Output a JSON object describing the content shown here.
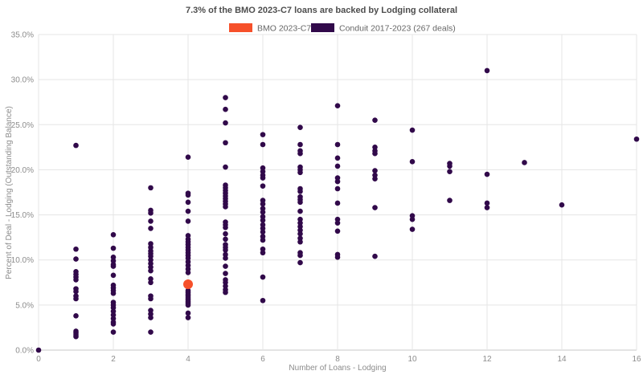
{
  "colors": {
    "background": "#ffffff",
    "grid": "#e5e5e5",
    "axis_line": "#c9c9c9",
    "title_text": "#4d4d4d",
    "legend_text": "#666666",
    "tick_text": "#8c8c8c"
  },
  "chart_data": {
    "type": "scatter",
    "title": "7.3% of the BMO 2023-C7 loans are backed by Lodging collateral",
    "xlabel": "Number of Loans - Lodging",
    "ylabel": "Percent of Deal - Lodging (Outstanding Balance)",
    "xlim": [
      0,
      16
    ],
    "ylim": [
      0,
      35
    ],
    "grid": true,
    "legend_position": "top",
    "x_ticks": [
      0,
      2,
      4,
      6,
      8,
      10,
      12,
      14,
      16
    ],
    "y_tick_values": [
      0,
      5,
      10,
      15,
      20,
      25,
      30,
      35
    ],
    "y_ticks": [
      "0.0%",
      "5.0%",
      "10.0%",
      "15.0%",
      "20.0%",
      "25.0%",
      "30.0%",
      "35.0%"
    ],
    "series": [
      {
        "name": "BMO 2023-C7",
        "color": "#f6502a",
        "radius": 6,
        "points": [
          [
            4,
            7.3
          ]
        ]
      },
      {
        "name": "Conduit 2017-2023 (267 deals)",
        "color": "#31094a",
        "radius": 3.3,
        "points": [
          [
            0,
            0.0
          ],
          [
            1,
            22.7
          ],
          [
            1,
            11.2
          ],
          [
            1,
            10.1
          ],
          [
            1,
            8.7
          ],
          [
            1,
            8.4
          ],
          [
            1,
            8.1
          ],
          [
            1,
            7.8
          ],
          [
            1,
            6.8
          ],
          [
            1,
            6.5
          ],
          [
            1,
            6.0
          ],
          [
            1,
            5.7
          ],
          [
            1,
            3.8
          ],
          [
            1,
            2.1
          ],
          [
            1,
            1.9
          ],
          [
            1,
            1.7
          ],
          [
            1,
            1.5
          ],
          [
            2,
            12.8
          ],
          [
            2,
            11.3
          ],
          [
            2,
            10.3
          ],
          [
            2,
            9.9
          ],
          [
            2,
            9.5
          ],
          [
            2,
            9.3
          ],
          [
            2,
            8.3
          ],
          [
            2,
            7.2
          ],
          [
            2,
            6.9
          ],
          [
            2,
            6.6
          ],
          [
            2,
            6.3
          ],
          [
            2,
            5.3
          ],
          [
            2,
            5.0
          ],
          [
            2,
            4.7
          ],
          [
            2,
            4.3
          ],
          [
            2,
            3.9
          ],
          [
            2,
            3.5
          ],
          [
            2,
            3.1
          ],
          [
            2,
            2.9
          ],
          [
            2,
            2.0
          ],
          [
            3,
            18.0
          ],
          [
            3,
            15.5
          ],
          [
            3,
            15.2
          ],
          [
            3,
            14.3
          ],
          [
            3,
            13.5
          ],
          [
            3,
            11.8
          ],
          [
            3,
            11.4
          ],
          [
            3,
            11.0
          ],
          [
            3,
            10.7
          ],
          [
            3,
            10.4
          ],
          [
            3,
            10.0
          ],
          [
            3,
            9.6
          ],
          [
            3,
            9.2
          ],
          [
            3,
            8.8
          ],
          [
            3,
            7.9
          ],
          [
            3,
            7.5
          ],
          [
            3,
            6.0
          ],
          [
            3,
            5.7
          ],
          [
            3,
            4.4
          ],
          [
            3,
            4.0
          ],
          [
            3,
            3.6
          ],
          [
            3,
            2.0
          ],
          [
            4,
            21.4
          ],
          [
            4,
            17.4
          ],
          [
            4,
            17.2
          ],
          [
            4,
            16.4
          ],
          [
            4,
            15.4
          ],
          [
            4,
            14.3
          ],
          [
            4,
            12.7
          ],
          [
            4,
            12.3
          ],
          [
            4,
            12.0
          ],
          [
            4,
            11.7
          ],
          [
            4,
            11.4
          ],
          [
            4,
            11.1
          ],
          [
            4,
            10.8
          ],
          [
            4,
            10.5
          ],
          [
            4,
            10.2
          ],
          [
            4,
            9.8
          ],
          [
            4,
            9.4
          ],
          [
            4,
            9.0
          ],
          [
            4,
            8.6
          ],
          [
            4,
            6.6
          ],
          [
            4,
            6.4
          ],
          [
            4,
            6.2
          ],
          [
            4,
            6.0
          ],
          [
            4,
            5.8
          ],
          [
            4,
            5.6
          ],
          [
            4,
            5.4
          ],
          [
            4,
            5.2
          ],
          [
            4,
            5.0
          ],
          [
            4,
            4.1
          ],
          [
            4,
            3.6
          ],
          [
            5,
            28.0
          ],
          [
            5,
            26.7
          ],
          [
            5,
            25.2
          ],
          [
            5,
            23.0
          ],
          [
            5,
            20.3
          ],
          [
            5,
            18.3
          ],
          [
            5,
            18.0
          ],
          [
            5,
            17.7
          ],
          [
            5,
            17.4
          ],
          [
            5,
            17.1
          ],
          [
            5,
            16.8
          ],
          [
            5,
            16.5
          ],
          [
            5,
            16.2
          ],
          [
            5,
            15.9
          ],
          [
            5,
            14.2
          ],
          [
            5,
            13.9
          ],
          [
            5,
            13.6
          ],
          [
            5,
            12.9
          ],
          [
            5,
            12.3
          ],
          [
            5,
            11.7
          ],
          [
            5,
            11.4
          ],
          [
            5,
            11.1
          ],
          [
            5,
            10.6
          ],
          [
            5,
            10.2
          ],
          [
            5,
            9.3
          ],
          [
            5,
            8.5
          ],
          [
            5,
            7.8
          ],
          [
            5,
            7.5
          ],
          [
            5,
            7.1
          ],
          [
            5,
            6.7
          ],
          [
            5,
            6.4
          ],
          [
            6,
            23.9
          ],
          [
            6,
            22.8
          ],
          [
            6,
            20.2
          ],
          [
            6,
            19.8
          ],
          [
            6,
            19.4
          ],
          [
            6,
            19.1
          ],
          [
            6,
            18.2
          ],
          [
            6,
            16.6
          ],
          [
            6,
            16.2
          ],
          [
            6,
            15.7
          ],
          [
            6,
            15.3
          ],
          [
            6,
            14.8
          ],
          [
            6,
            14.4
          ],
          [
            6,
            13.9
          ],
          [
            6,
            13.5
          ],
          [
            6,
            13.1
          ],
          [
            6,
            12.6
          ],
          [
            6,
            12.2
          ],
          [
            6,
            11.2
          ],
          [
            6,
            10.8
          ],
          [
            6,
            8.1
          ],
          [
            6,
            5.5
          ],
          [
            7,
            24.7
          ],
          [
            7,
            22.8
          ],
          [
            7,
            22.1
          ],
          [
            7,
            21.8
          ],
          [
            7,
            20.3
          ],
          [
            7,
            20.0
          ],
          [
            7,
            19.7
          ],
          [
            7,
            17.9
          ],
          [
            7,
            17.6
          ],
          [
            7,
            17.0
          ],
          [
            7,
            16.7
          ],
          [
            7,
            16.4
          ],
          [
            7,
            15.4
          ],
          [
            7,
            14.5
          ],
          [
            7,
            14.1
          ],
          [
            7,
            13.7
          ],
          [
            7,
            13.3
          ],
          [
            7,
            12.9
          ],
          [
            7,
            12.4
          ],
          [
            7,
            12.0
          ],
          [
            7,
            10.8
          ],
          [
            7,
            10.5
          ],
          [
            7,
            9.7
          ],
          [
            8,
            27.1
          ],
          [
            8,
            22.8
          ],
          [
            8,
            21.3
          ],
          [
            8,
            20.4
          ],
          [
            8,
            19.1
          ],
          [
            8,
            18.7
          ],
          [
            8,
            17.9
          ],
          [
            8,
            16.3
          ],
          [
            8,
            14.5
          ],
          [
            8,
            14.1
          ],
          [
            8,
            13.2
          ],
          [
            8,
            10.6
          ],
          [
            8,
            10.3
          ],
          [
            9,
            25.5
          ],
          [
            9,
            22.5
          ],
          [
            9,
            22.1
          ],
          [
            9,
            21.8
          ],
          [
            9,
            19.9
          ],
          [
            9,
            19.4
          ],
          [
            9,
            19.0
          ],
          [
            9,
            15.8
          ],
          [
            9,
            10.4
          ],
          [
            10,
            24.4
          ],
          [
            10,
            20.9
          ],
          [
            10,
            14.9
          ],
          [
            10,
            14.5
          ],
          [
            10,
            13.4
          ],
          [
            11,
            20.7
          ],
          [
            11,
            20.4
          ],
          [
            11,
            19.8
          ],
          [
            11,
            16.6
          ],
          [
            12,
            31.0
          ],
          [
            12,
            19.5
          ],
          [
            12,
            16.3
          ],
          [
            12,
            15.8
          ],
          [
            13,
            20.8
          ],
          [
            14,
            16.1
          ],
          [
            16,
            23.4
          ]
        ]
      }
    ]
  }
}
